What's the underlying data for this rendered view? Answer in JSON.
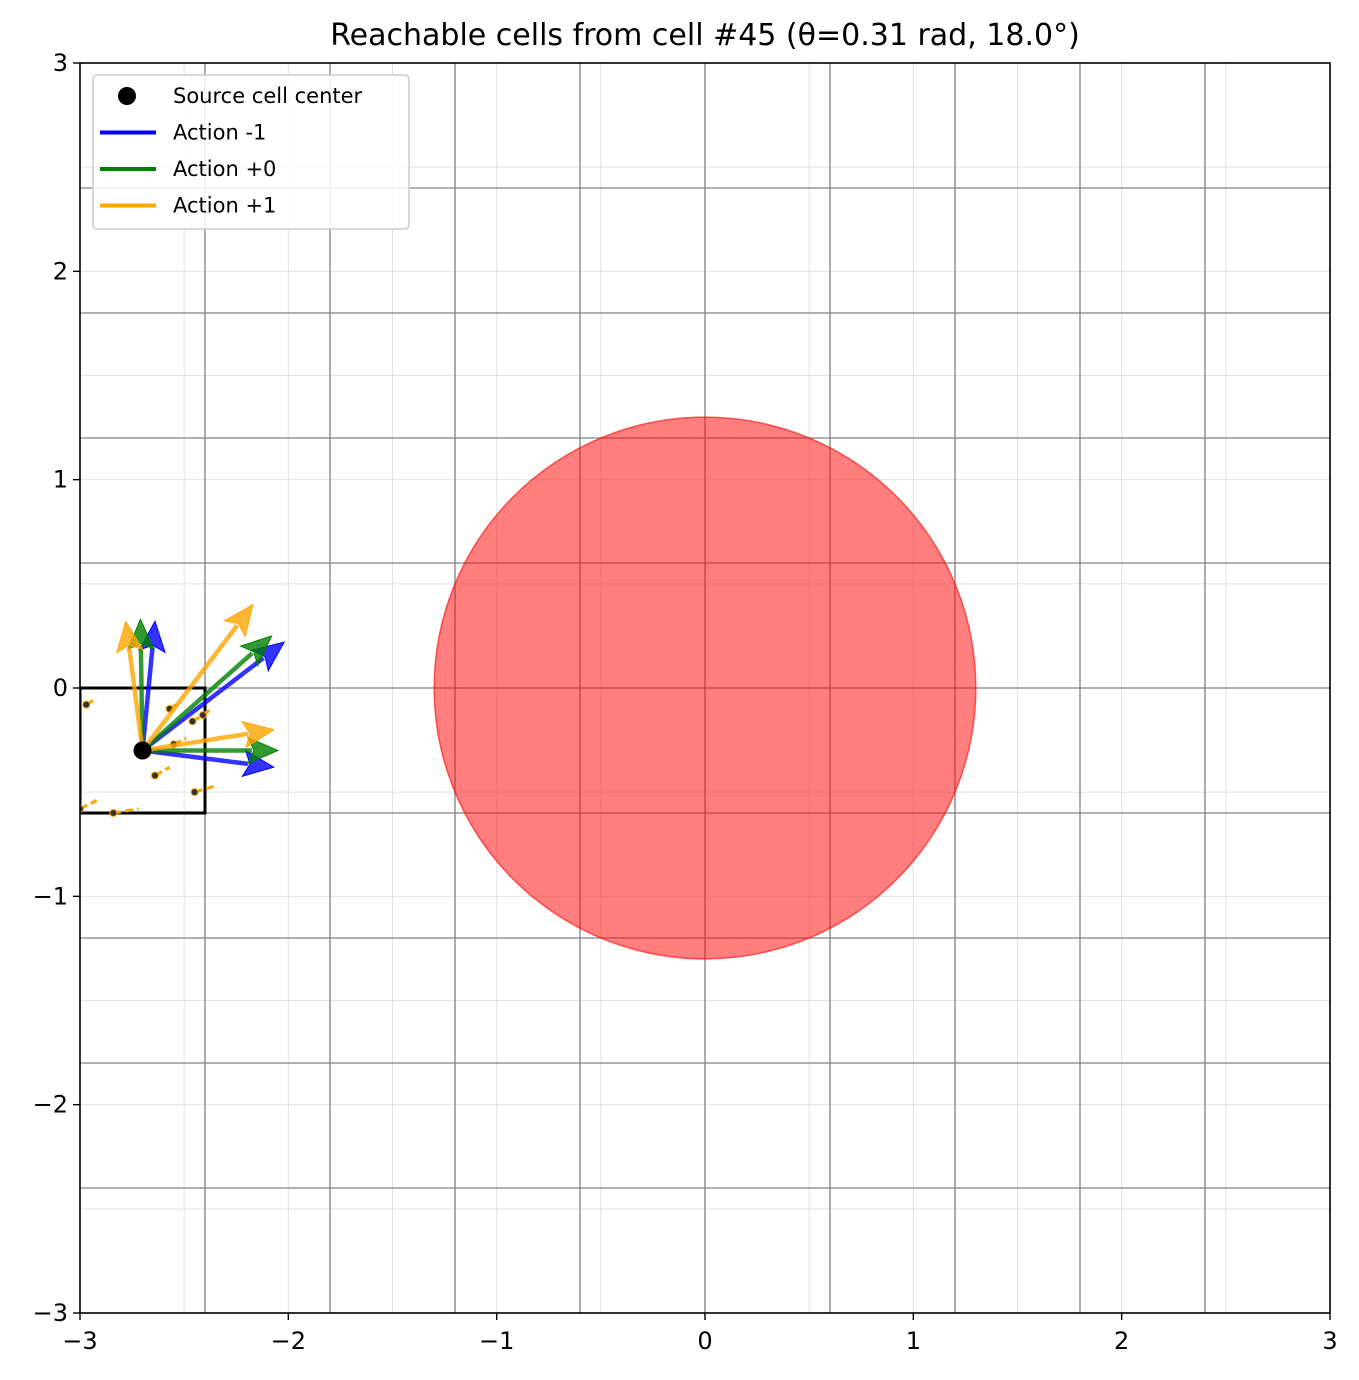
{
  "chart_data": {
    "type": "scatter",
    "title": "Reachable cells from cell #45 (θ=0.31 rad, 18.0°)",
    "xlabel": "",
    "ylabel": "",
    "xlim": [
      -3,
      3
    ],
    "ylim": [
      -3,
      3
    ],
    "x_ticks": [
      -3,
      -2,
      -1,
      0,
      1,
      2,
      3
    ],
    "y_ticks": [
      -3,
      -2,
      -1,
      0,
      1,
      2,
      3
    ],
    "x_tick_labels": [
      "−3",
      "−2",
      "−1",
      "0",
      "1",
      "2",
      "3"
    ],
    "y_tick_labels": [
      "−3",
      "−2",
      "−1",
      "0",
      "1",
      "2",
      "3"
    ],
    "grid": true,
    "fine_grid_step": 0.5,
    "cell_grid_lines": [
      -2.4,
      -1.8,
      -1.2,
      -0.6,
      0,
      0.6,
      1.2,
      1.8,
      2.4
    ],
    "legend_position": "upper-left",
    "legend": [
      {
        "label": "Source cell center",
        "marker": "dot",
        "color": "#000000"
      },
      {
        "label": "Action -1",
        "marker": "line",
        "color": "#0000ff"
      },
      {
        "label": "Action +0",
        "marker": "line",
        "color": "#008000"
      },
      {
        "label": "Action +1",
        "marker": "line",
        "color": "#ffa500"
      }
    ],
    "obstacle": {
      "center": [
        0,
        0
      ],
      "radius": 1.3,
      "color": "#ff0000",
      "opacity": 0.5
    },
    "source_cell": {
      "x0": -3.0,
      "y0": -0.6,
      "x1": -2.4,
      "y1": 0.0
    },
    "source_center": [
      -2.7,
      -0.3
    ],
    "arrows": [
      {
        "action": "-1",
        "color": "#0000ff",
        "from": [
          -2.7,
          -0.3
        ],
        "to": [
          -2.64,
          0.32
        ]
      },
      {
        "action": "-1",
        "color": "#0000ff",
        "from": [
          -2.7,
          -0.3
        ],
        "to": [
          -2.02,
          0.22
        ]
      },
      {
        "action": "-1",
        "color": "#0000ff",
        "from": [
          -2.7,
          -0.3
        ],
        "to": [
          -2.07,
          -0.38
        ]
      },
      {
        "action": "+0",
        "color": "#008000",
        "from": [
          -2.7,
          -0.3
        ],
        "to": [
          -2.71,
          0.33
        ]
      },
      {
        "action": "+0",
        "color": "#008000",
        "from": [
          -2.7,
          -0.3
        ],
        "to": [
          -2.08,
          0.25
        ]
      },
      {
        "action": "+0",
        "color": "#008000",
        "from": [
          -2.7,
          -0.3
        ],
        "to": [
          -2.05,
          -0.3
        ]
      },
      {
        "action": "+1",
        "color": "#ffa500",
        "from": [
          -2.7,
          -0.3
        ],
        "to": [
          -2.78,
          0.32
        ]
      },
      {
        "action": "+1",
        "color": "#ffa500",
        "from": [
          -2.7,
          -0.3
        ],
        "to": [
          -2.17,
          0.4
        ]
      },
      {
        "action": "+1",
        "color": "#ffa500",
        "from": [
          -2.7,
          -0.3
        ],
        "to": [
          -2.07,
          -0.2
        ]
      }
    ],
    "trajectory_segments": [
      {
        "from": [
          -2.97,
          -0.08
        ],
        "to": [
          -2.92,
          -0.05
        ]
      },
      {
        "from": [
          -2.57,
          -0.1
        ],
        "to": [
          -2.52,
          -0.07
        ]
      },
      {
        "from": [
          -2.46,
          -0.16
        ],
        "to": [
          -2.39,
          -0.12
        ]
      },
      {
        "from": [
          -2.55,
          -0.27
        ],
        "to": [
          -2.49,
          -0.24
        ]
      },
      {
        "from": [
          -2.41,
          -0.13
        ],
        "to": [
          -2.37,
          -0.1
        ]
      },
      {
        "from": [
          -2.64,
          -0.42
        ],
        "to": [
          -2.57,
          -0.38
        ]
      },
      {
        "from": [
          -2.45,
          -0.5
        ],
        "to": [
          -2.35,
          -0.47
        ]
      },
      {
        "from": [
          -3.0,
          -0.58
        ],
        "to": [
          -2.92,
          -0.54
        ]
      },
      {
        "from": [
          -2.84,
          -0.6
        ],
        "to": [
          -2.72,
          -0.58
        ]
      }
    ]
  }
}
